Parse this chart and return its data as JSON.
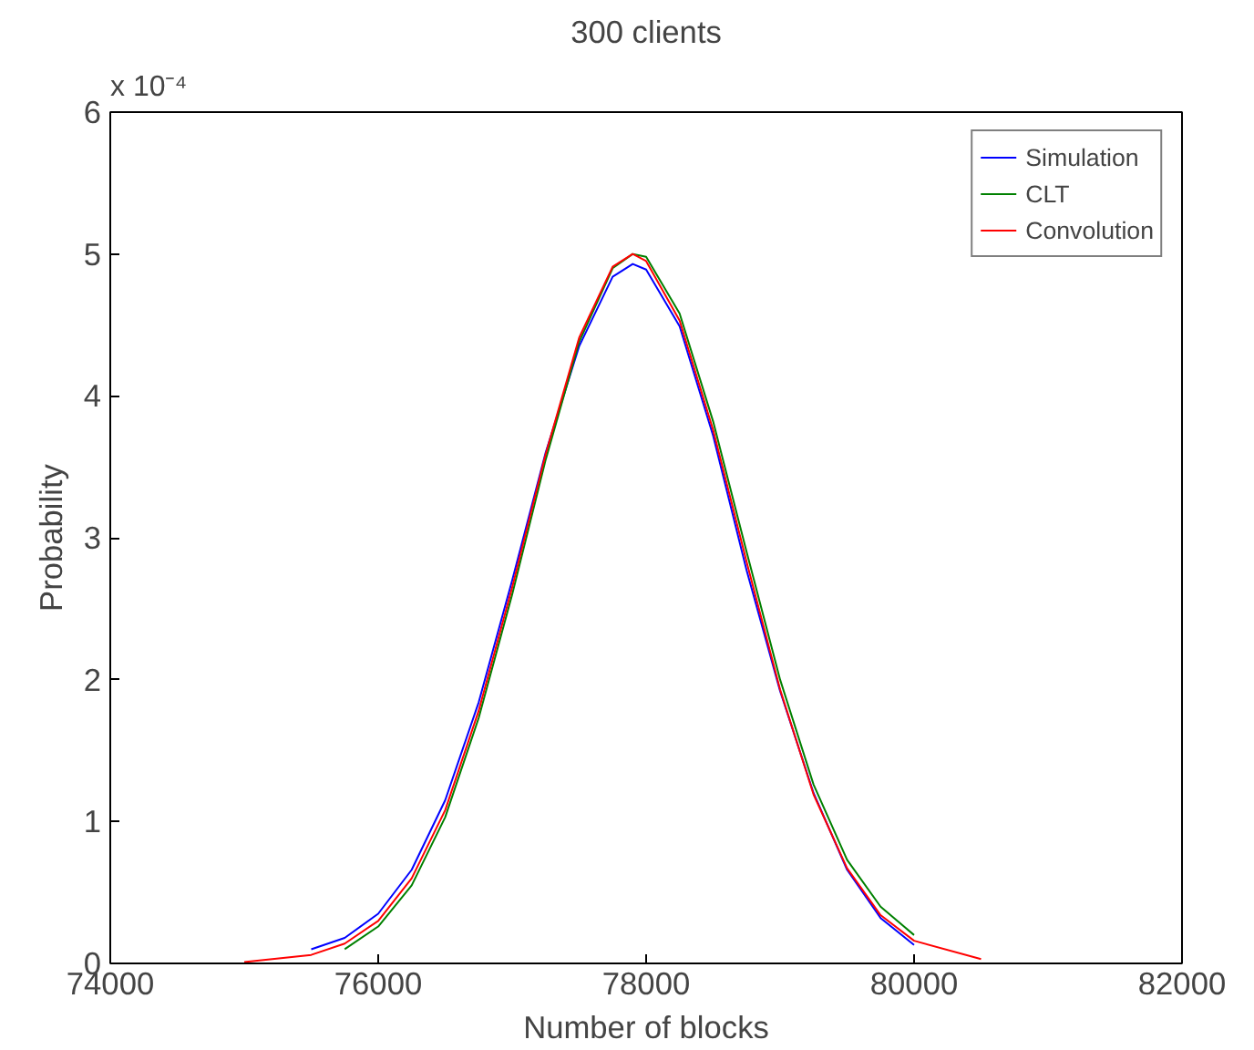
{
  "chart_data": {
    "type": "line",
    "title": "300 clients",
    "xlabel": "Number of blocks",
    "ylabel": "Probability",
    "annotations": [
      "x 10⁻⁴"
    ],
    "series": [
      {
        "name": "Simulation",
        "color": "#0000ff",
        "x": [
          75500,
          75750,
          76000,
          76250,
          76500,
          76750,
          77000,
          77250,
          77500,
          77750,
          77900,
          78000,
          78250,
          78500,
          78750,
          79000,
          79250,
          79500,
          79750,
          80000
        ],
        "values": [
          0.1,
          0.18,
          0.35,
          0.66,
          1.15,
          1.84,
          2.7,
          3.6,
          4.35,
          4.84,
          4.93,
          4.89,
          4.49,
          3.72,
          2.77,
          1.92,
          1.2,
          0.66,
          0.32,
          0.13
        ]
      },
      {
        "name": "CLT",
        "color": "#008000",
        "x": [
          75750,
          76000,
          76250,
          76500,
          76750,
          77000,
          77250,
          77500,
          77750,
          77900,
          78000,
          78250,
          78500,
          78750,
          79000,
          79250,
          79500,
          79750,
          80000
        ],
        "values": [
          0.1,
          0.26,
          0.55,
          1.03,
          1.73,
          2.6,
          3.55,
          4.38,
          4.9,
          5.0,
          4.98,
          4.58,
          3.82,
          2.9,
          2.0,
          1.26,
          0.73,
          0.4,
          0.2
        ]
      },
      {
        "name": "Convolution",
        "color": "#ff0000",
        "x": [
          75000,
          75500,
          75750,
          76000,
          76250,
          76500,
          76750,
          77000,
          77250,
          77500,
          77750,
          77900,
          78000,
          78250,
          78500,
          78750,
          79000,
          79250,
          79500,
          79750,
          80000,
          80500
        ],
        "values": [
          0.01,
          0.06,
          0.14,
          0.3,
          0.6,
          1.08,
          1.78,
          2.65,
          3.59,
          4.41,
          4.91,
          5.0,
          4.95,
          4.53,
          3.76,
          2.83,
          1.93,
          1.19,
          0.67,
          0.34,
          0.16,
          0.03
        ]
      }
    ],
    "xlim": [
      74000,
      82000
    ],
    "xticks": [
      74000,
      76000,
      78000,
      80000,
      82000
    ],
    "ylim": [
      0,
      6
    ],
    "yticks": [
      0,
      1,
      2,
      3,
      4,
      5,
      6
    ],
    "legend": "top right",
    "grid": false
  }
}
